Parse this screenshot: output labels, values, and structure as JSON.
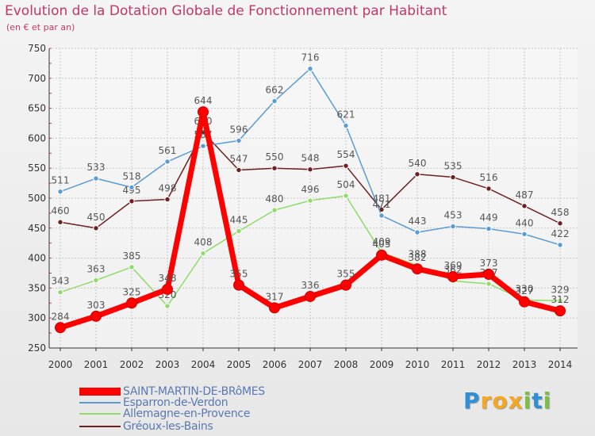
{
  "chart_data": {
    "type": "line",
    "title": "Evolution de la Dotation Globale de Fonctionnement par Habitant",
    "subtitle": "(en € et par an)",
    "xlabel": "",
    "ylabel": "",
    "x": [
      "2000",
      "2001",
      "2002",
      "2003",
      "2004",
      "2005",
      "2006",
      "2007",
      "2008",
      "2009",
      "2010",
      "2011",
      "2012",
      "2013",
      "2014"
    ],
    "ylim": [
      250,
      750
    ],
    "yticks": [
      "250",
      "300",
      "350",
      "400",
      "450",
      "500",
      "550",
      "600",
      "650",
      "700",
      "750"
    ],
    "grid": true,
    "legend_position": "bottom-left",
    "series": [
      {
        "name": "Gréoux-les-Bains",
        "color": "#6e1f1f",
        "values": [
          460,
          450,
          495,
          498,
          610,
          547,
          550,
          548,
          554,
          481,
          540,
          535,
          516,
          487,
          458
        ]
      },
      {
        "name": "Allemagne-en-Provence",
        "color": "#8fdc6a",
        "values": [
          343,
          363,
          385,
          320,
          408,
          445,
          480,
          496,
          504,
          409,
          388,
          362,
          357,
          330,
          329
        ]
      },
      {
        "name": "Esparron-de-Verdon",
        "color": "#5b9bd5",
        "values": [
          511,
          533,
          518,
          561,
          587,
          596,
          662,
          716,
          621,
          471,
          443,
          453,
          449,
          440,
          422
        ]
      },
      {
        "name": "SAINT-MARTIN-DE-BRôMES",
        "color": "#ff0000",
        "values": [
          284,
          303,
          325,
          348,
          644,
          355,
          317,
          336,
          355,
          405,
          382,
          369,
          373,
          327,
          312
        ]
      }
    ]
  },
  "legend": [
    "SAINT-MARTIN-DE-BRôMES",
    "Esparron-de-Verdon",
    "Allemagne-en-Provence",
    "Gréoux-les-Bains"
  ],
  "brand": {
    "letters": [
      "P",
      "r",
      "o",
      "x",
      "i",
      "t",
      "i"
    ],
    "colors": [
      "#2f8fd6",
      "#f5a623",
      "#f5a623",
      "#f5a623",
      "#7bc043",
      "#2f8fd6",
      "#7bc043"
    ]
  }
}
